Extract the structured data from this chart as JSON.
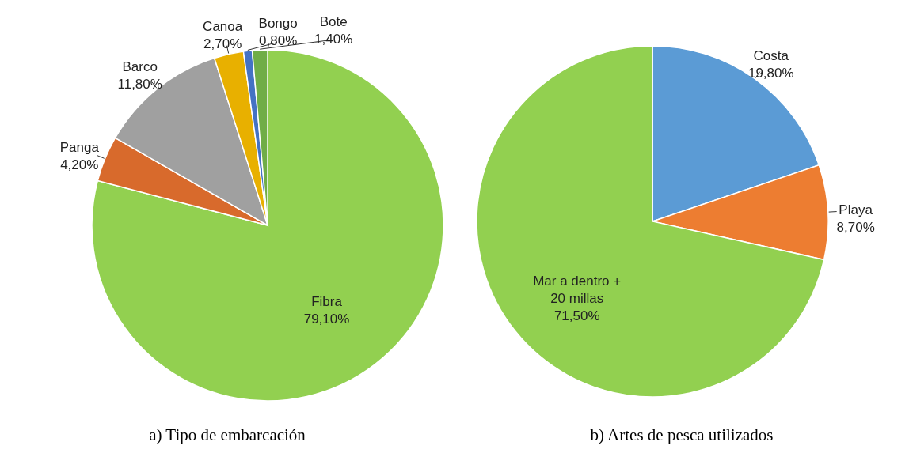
{
  "chart_data": [
    {
      "type": "pie",
      "title": "a) Tipo de embarcación",
      "categories": [
        "Fibra",
        "Panga",
        "Barco",
        "Canoa",
        "Bongo",
        "Bote"
      ],
      "values": [
        79.1,
        4.2,
        11.8,
        2.7,
        0.8,
        1.4
      ],
      "value_labels": [
        "79,10%",
        "4,20%",
        "11,80%",
        "2,70%",
        "0,80%",
        "1,40%"
      ],
      "colors": [
        "#92d050",
        "#d86a2c",
        "#a0a0a0",
        "#e8b000",
        "#4472c4",
        "#70ad47"
      ]
    },
    {
      "type": "pie",
      "title": "b) Artes de pesca utilizados",
      "categories": [
        "Costa",
        "Playa",
        "Mar a dentro +\n20 millas"
      ],
      "values": [
        19.8,
        8.7,
        71.5
      ],
      "value_labels": [
        "19,80%",
        "8,70%",
        "71,50%"
      ],
      "colors": [
        "#5b9bd5",
        "#ed7d31",
        "#92d050"
      ]
    }
  ]
}
